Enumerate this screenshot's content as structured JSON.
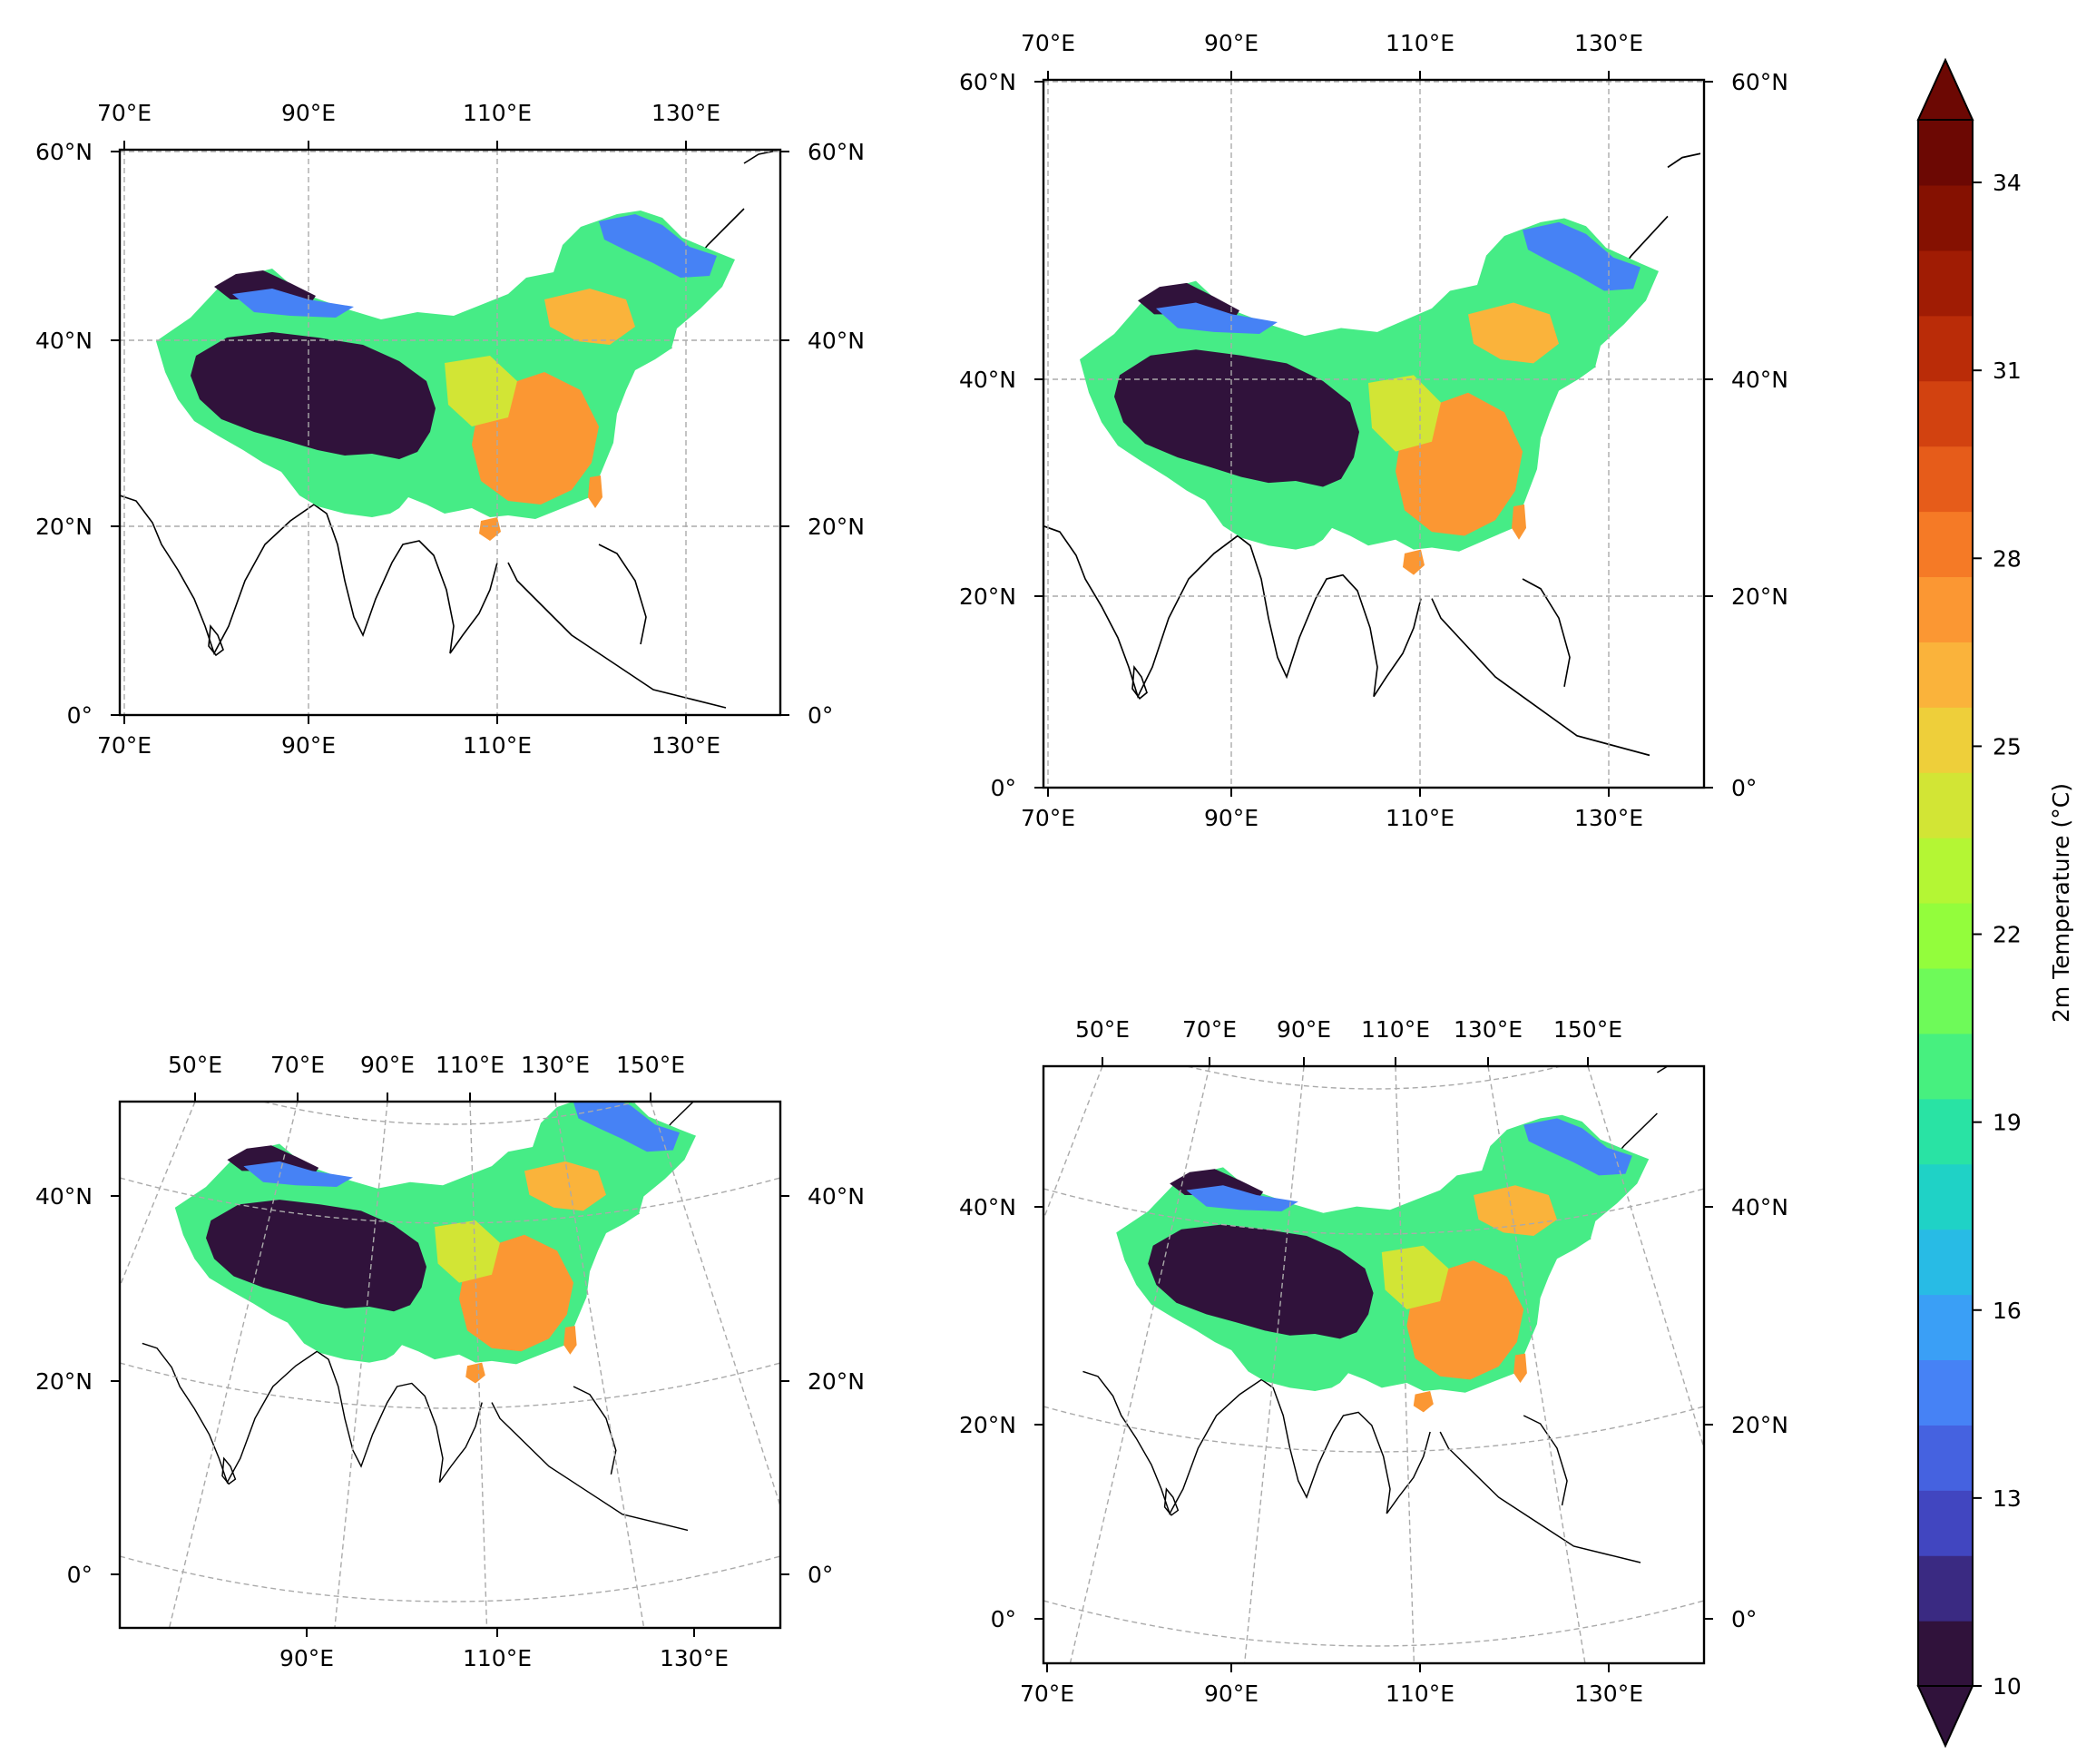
{
  "figure": {
    "panels": [
      {
        "projection": "PlateCarree",
        "top_labels": [
          "70°E",
          "90°E",
          "110°E",
          "130°E"
        ],
        "bottom_labels": [
          "70°E",
          "90°E",
          "110°E",
          "130°E"
        ],
        "left_labels": [
          "60°N",
          "40°N",
          "20°N",
          "0°"
        ],
        "right_labels": [
          "60°N",
          "40°N",
          "20°N",
          "0°"
        ]
      },
      {
        "projection": "PlateCarree",
        "top_labels": [
          "70°E",
          "90°E",
          "110°E",
          "130°E"
        ],
        "bottom_labels": [
          "70°E",
          "90°E",
          "110°E",
          "130°E"
        ],
        "left_labels": [
          "60°N",
          "40°N",
          "20°N",
          "0°"
        ],
        "right_labels": [
          "60°N",
          "40°N",
          "20°N",
          "0°"
        ]
      },
      {
        "projection": "LambertConformal",
        "top_labels": [
          "50°E",
          "70°E",
          "90°E",
          "110°E",
          "130°E",
          "150°E"
        ],
        "bottom_labels": [
          "90°E",
          "110°E",
          "130°E"
        ],
        "left_labels": [
          "40°N",
          "20°N",
          "0°"
        ],
        "right_labels": [
          "40°N",
          "20°N",
          "0°"
        ]
      },
      {
        "projection": "LambertConformal",
        "top_labels": [
          "50°E",
          "70°E",
          "90°E",
          "110°E",
          "130°E",
          "150°E"
        ],
        "bottom_labels": [
          "70°E",
          "90°E",
          "110°E",
          "130°E"
        ],
        "left_labels": [
          "40°N",
          "20°N",
          "0°"
        ],
        "right_labels": [
          "40°N",
          "20°N",
          "0°"
        ]
      }
    ],
    "colorbar": {
      "label": "2m Temperature (°C)",
      "min": 10,
      "max": 35,
      "ticks": [
        "10",
        "13",
        "16",
        "19",
        "22",
        "25",
        "28",
        "31",
        "34"
      ],
      "extend": "both",
      "colors": [
        "#30123b",
        "#3a2a82",
        "#4146c0",
        "#4562e0",
        "#4682f5",
        "#3a9ff6",
        "#28bbe5",
        "#1fd2c6",
        "#29e3a4",
        "#47f07f",
        "#6efa59",
        "#93fd3c",
        "#b4f634",
        "#d2e535",
        "#eecf3a",
        "#fab33b",
        "#fb9733",
        "#f57a26",
        "#e65c1a",
        "#d24210",
        "#ba2c08",
        "#a01c04",
        "#851101",
        "#6c0803"
      ]
    }
  }
}
